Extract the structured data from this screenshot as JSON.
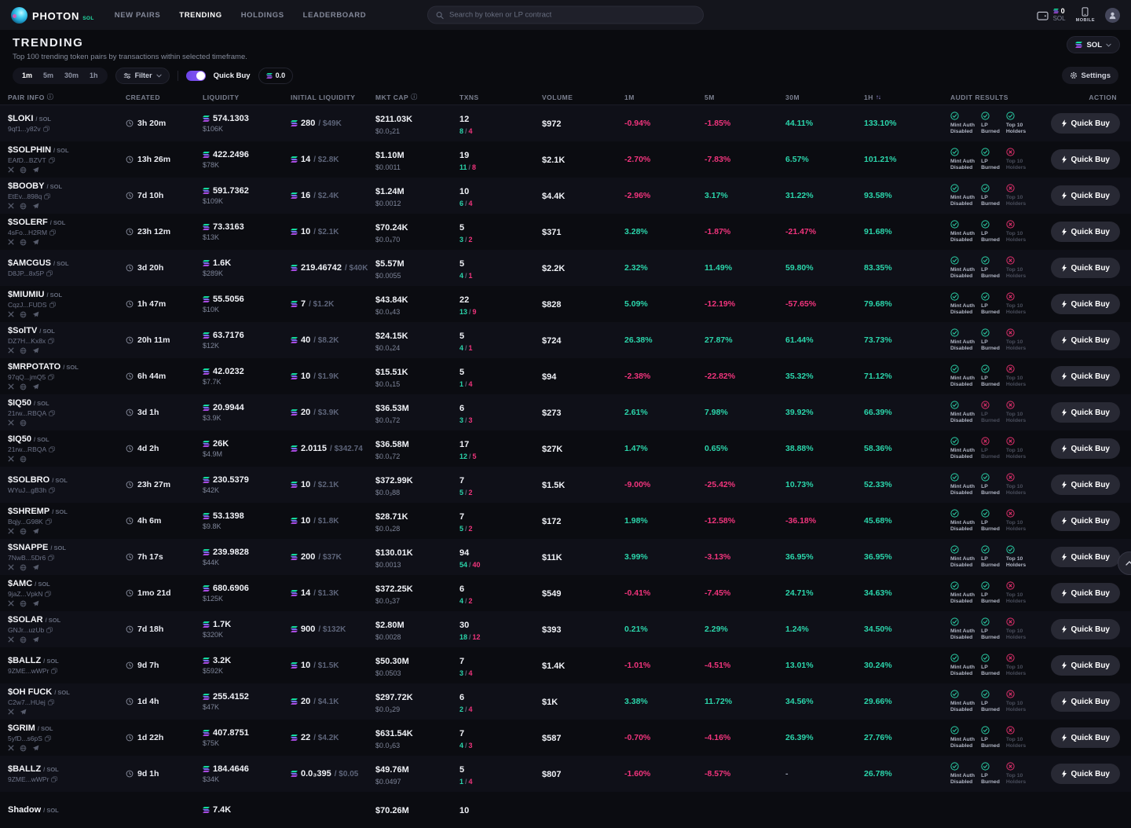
{
  "nav": {
    "brand": "PHOTON",
    "brand_sub": "SOL",
    "links": [
      {
        "label": "NEW PAIRS",
        "active": false
      },
      {
        "label": "TRENDING",
        "active": true
      },
      {
        "label": "HOLDINGS",
        "active": false
      },
      {
        "label": "LEADERBOARD",
        "active": false
      }
    ],
    "search_placeholder": "Search by token or LP contract",
    "wallet_balance": "0",
    "wallet_unit": "SOL",
    "mobile_label": "MOBILE"
  },
  "header": {
    "title": "TRENDING",
    "subtitle": "Top 100 trending token pairs by transactions within selected timeframe.",
    "chain_selector": "SOL"
  },
  "controls": {
    "timeframes": [
      "1m",
      "5m",
      "30m",
      "1h"
    ],
    "active_timeframe": "1m",
    "filter_label": "Filter",
    "quick_buy_label": "Quick Buy",
    "quick_buy_amount": "0.0",
    "settings_label": "Settings"
  },
  "table": {
    "columns": [
      "PAIR INFO",
      "CREATED",
      "LIQUIDITY",
      "INITIAL LIQUIDITY",
      "MKT CAP",
      "TXNS",
      "VOLUME",
      "1M",
      "5M",
      "30M",
      "1H",
      "AUDIT RESULTS",
      "ACTION"
    ],
    "audit_labels": {
      "mint": [
        "Mint Auth",
        "Disabled"
      ],
      "lp": [
        "LP",
        "Burned"
      ],
      "top10": [
        "Top 10",
        "Holders"
      ]
    },
    "action_label": "Quick Buy",
    "rows": [
      {
        "ticker": "$LOKI",
        "quote": "SOL",
        "address": "9qf1...y82v",
        "socials": [],
        "created": "3h 20m",
        "liq_sol": "574.1303",
        "liq_usd": "$106K",
        "init_sol": "280",
        "init_usd": "$49K",
        "mcap": "$211.03K",
        "price": "$0.0₃21",
        "txns": "12",
        "buys": "8",
        "sells": "4",
        "volume": "$972",
        "m1": "-0.94%",
        "m5": "-1.85%",
        "m30": "44.11%",
        "h1": "133.10%",
        "audit": {
          "mint": true,
          "lp": true,
          "top10": true
        }
      },
      {
        "ticker": "$SOLPHIN",
        "quote": "SOL",
        "address": "EAfD...BZVT",
        "socials": [
          "x",
          "globe",
          "telegram"
        ],
        "created": "13h 26m",
        "liq_sol": "422.2496",
        "liq_usd": "$78K",
        "init_sol": "14",
        "init_usd": "$2.8K",
        "mcap": "$1.10M",
        "price": "$0.0011",
        "txns": "19",
        "buys": "11",
        "sells": "8",
        "volume": "$2.1K",
        "m1": "-2.70%",
        "m5": "-7.83%",
        "m30": "6.57%",
        "h1": "101.21%",
        "audit": {
          "mint": true,
          "lp": true,
          "top10": false
        }
      },
      {
        "ticker": "$BOOBY",
        "quote": "SOL",
        "address": "EtEv...898q",
        "socials": [
          "x",
          "globe",
          "telegram"
        ],
        "created": "7d 10h",
        "liq_sol": "591.7362",
        "liq_usd": "$109K",
        "init_sol": "16",
        "init_usd": "$2.4K",
        "mcap": "$1.24M",
        "price": "$0.0012",
        "txns": "10",
        "buys": "6",
        "sells": "4",
        "volume": "$4.4K",
        "m1": "-2.96%",
        "m5": "3.17%",
        "m30": "31.22%",
        "h1": "93.58%",
        "audit": {
          "mint": true,
          "lp": true,
          "top10": false
        }
      },
      {
        "ticker": "$SOLERF",
        "quote": "SOL",
        "address": "4sFo...H2RM",
        "socials": [
          "x",
          "globe",
          "telegram"
        ],
        "created": "23h 12m",
        "liq_sol": "73.3163",
        "liq_usd": "$13K",
        "init_sol": "10",
        "init_usd": "$2.1K",
        "mcap": "$70.24K",
        "price": "$0.0₄70",
        "txns": "5",
        "buys": "3",
        "sells": "2",
        "volume": "$371",
        "m1": "3.28%",
        "m5": "-1.87%",
        "m30": "-21.47%",
        "h1": "91.68%",
        "audit": {
          "mint": true,
          "lp": true,
          "top10": false
        }
      },
      {
        "ticker": "$AMCGUS",
        "quote": "SOL",
        "address": "D8JP...8x5P",
        "socials": [],
        "created": "3d 20h",
        "liq_sol": "1.6K",
        "liq_usd": "$289K",
        "init_sol": "219.46742",
        "init_usd": "$40K",
        "mcap": "$5.57M",
        "price": "$0.0055",
        "txns": "5",
        "buys": "4",
        "sells": "1",
        "volume": "$2.2K",
        "m1": "2.32%",
        "m5": "11.49%",
        "m30": "59.80%",
        "h1": "83.35%",
        "audit": {
          "mint": true,
          "lp": true,
          "top10": false
        }
      },
      {
        "ticker": "$MIUMIU",
        "quote": "SOL",
        "address": "CqzJ...FUDS",
        "socials": [
          "x",
          "globe",
          "telegram"
        ],
        "created": "1h 47m",
        "liq_sol": "55.5056",
        "liq_usd": "$10K",
        "init_sol": "7",
        "init_usd": "$1.2K",
        "mcap": "$43.84K",
        "price": "$0.0₄43",
        "txns": "22",
        "buys": "13",
        "sells": "9",
        "volume": "$828",
        "m1": "5.09%",
        "m5": "-12.19%",
        "m30": "-57.65%",
        "h1": "79.68%",
        "audit": {
          "mint": true,
          "lp": true,
          "top10": false
        }
      },
      {
        "ticker": "$SolTV",
        "quote": "SOL",
        "address": "DZ7H...Kx8x",
        "socials": [
          "x",
          "globe",
          "telegram"
        ],
        "created": "20h 11m",
        "liq_sol": "63.7176",
        "liq_usd": "$12K",
        "init_sol": "40",
        "init_usd": "$8.2K",
        "mcap": "$24.15K",
        "price": "$0.0₄24",
        "txns": "5",
        "buys": "4",
        "sells": "1",
        "volume": "$724",
        "m1": "26.38%",
        "m5": "27.87%",
        "m30": "61.44%",
        "h1": "73.73%",
        "audit": {
          "mint": true,
          "lp": true,
          "top10": false
        }
      },
      {
        "ticker": "$MRPOTATO",
        "quote": "SOL",
        "address": "97qQ...jmQ5",
        "socials": [
          "x",
          "globe",
          "telegram"
        ],
        "created": "6h 44m",
        "liq_sol": "42.0232",
        "liq_usd": "$7.7K",
        "init_sol": "10",
        "init_usd": "$1.9K",
        "mcap": "$15.51K",
        "price": "$0.0₄15",
        "txns": "5",
        "buys": "1",
        "sells": "4",
        "volume": "$94",
        "m1": "-2.38%",
        "m5": "-22.82%",
        "m30": "35.32%",
        "h1": "71.12%",
        "audit": {
          "mint": true,
          "lp": true,
          "top10": false
        }
      },
      {
        "ticker": "$IQ50",
        "quote": "SOL",
        "address": "21rw...RBQA",
        "socials": [
          "x",
          "globe"
        ],
        "created": "3d 1h",
        "liq_sol": "20.9944",
        "liq_usd": "$3.9K",
        "init_sol": "20",
        "init_usd": "$3.9K",
        "mcap": "$36.53M",
        "price": "$0.0₄72",
        "txns": "6",
        "buys": "3",
        "sells": "3",
        "volume": "$273",
        "m1": "2.61%",
        "m5": "7.98%",
        "m30": "39.92%",
        "h1": "66.39%",
        "audit": {
          "mint": true,
          "lp": false,
          "top10": false
        }
      },
      {
        "ticker": "$IQ50",
        "quote": "SOL",
        "address": "21rw...RBQA",
        "socials": [
          "x",
          "globe"
        ],
        "created": "4d 2h",
        "liq_sol": "26K",
        "liq_usd": "$4.9M",
        "init_sol": "2.0115",
        "init_usd": "$342.74",
        "mcap": "$36.58M",
        "price": "$0.0₄72",
        "txns": "17",
        "buys": "12",
        "sells": "5",
        "volume": "$27K",
        "m1": "1.47%",
        "m5": "0.65%",
        "m30": "38.88%",
        "h1": "58.36%",
        "audit": {
          "mint": true,
          "lp": false,
          "top10": false
        }
      },
      {
        "ticker": "$SOLBRO",
        "quote": "SOL",
        "address": "WYuJ...gB3h",
        "socials": [],
        "created": "23h 27m",
        "liq_sol": "230.5379",
        "liq_usd": "$42K",
        "init_sol": "10",
        "init_usd": "$2.1K",
        "mcap": "$372.99K",
        "price": "$0.0₃88",
        "txns": "7",
        "buys": "5",
        "sells": "2",
        "volume": "$1.5K",
        "m1": "-9.00%",
        "m5": "-25.42%",
        "m30": "10.73%",
        "h1": "52.33%",
        "audit": {
          "mint": true,
          "lp": true,
          "top10": false
        }
      },
      {
        "ticker": "$SHREMP",
        "quote": "SOL",
        "address": "Bqjy...G98K",
        "socials": [
          "x",
          "globe",
          "telegram"
        ],
        "created": "4h 6m",
        "liq_sol": "53.1398",
        "liq_usd": "$9.8K",
        "init_sol": "10",
        "init_usd": "$1.8K",
        "mcap": "$28.71K",
        "price": "$0.0₄28",
        "txns": "7",
        "buys": "5",
        "sells": "2",
        "volume": "$172",
        "m1": "1.98%",
        "m5": "-12.58%",
        "m30": "-36.18%",
        "h1": "45.68%",
        "audit": {
          "mint": true,
          "lp": true,
          "top10": false
        }
      },
      {
        "ticker": "$SNAPPE",
        "quote": "SOL",
        "address": "7NwB...5Dr6",
        "socials": [
          "x",
          "globe",
          "telegram"
        ],
        "created": "7h 17s",
        "liq_sol": "239.9828",
        "liq_usd": "$44K",
        "init_sol": "200",
        "init_usd": "$37K",
        "mcap": "$130.01K",
        "price": "$0.0013",
        "txns": "94",
        "buys": "54",
        "sells": "40",
        "volume": "$11K",
        "m1": "3.99%",
        "m5": "-3.13%",
        "m30": "36.95%",
        "h1": "36.95%",
        "audit": {
          "mint": true,
          "lp": true,
          "top10": true
        }
      },
      {
        "ticker": "$AMC",
        "quote": "SOL",
        "address": "9jaZ...VpkN",
        "socials": [
          "x",
          "globe",
          "telegram"
        ],
        "created": "1mo 21d",
        "liq_sol": "680.6906",
        "liq_usd": "$125K",
        "init_sol": "14",
        "init_usd": "$1.3K",
        "mcap": "$372.25K",
        "price": "$0.0₃37",
        "txns": "6",
        "buys": "4",
        "sells": "2",
        "volume": "$549",
        "m1": "-0.41%",
        "m5": "-7.45%",
        "m30": "24.71%",
        "h1": "34.63%",
        "audit": {
          "mint": true,
          "lp": true,
          "top10": false
        }
      },
      {
        "ticker": "$SOLAR",
        "quote": "SOL",
        "address": "GNJr...uzUb",
        "socials": [
          "x",
          "globe",
          "telegram"
        ],
        "created": "7d 18h",
        "liq_sol": "1.7K",
        "liq_usd": "$320K",
        "init_sol": "900",
        "init_usd": "$132K",
        "mcap": "$2.80M",
        "price": "$0.0028",
        "txns": "30",
        "buys": "18",
        "sells": "12",
        "volume": "$393",
        "m1": "0.21%",
        "m5": "2.29%",
        "m30": "1.24%",
        "h1": "34.50%",
        "audit": {
          "mint": true,
          "lp": true,
          "top10": false
        }
      },
      {
        "ticker": "$BALLZ",
        "quote": "SOL",
        "address": "9ZME...wWPr",
        "socials": [],
        "created": "9d 7h",
        "liq_sol": "3.2K",
        "liq_usd": "$592K",
        "init_sol": "10",
        "init_usd": "$1.5K",
        "mcap": "$50.30M",
        "price": "$0.0503",
        "txns": "7",
        "buys": "3",
        "sells": "4",
        "volume": "$1.4K",
        "m1": "-1.01%",
        "m5": "-4.51%",
        "m30": "13.01%",
        "h1": "30.24%",
        "audit": {
          "mint": true,
          "lp": true,
          "top10": false
        }
      },
      {
        "ticker": "$OH FUCK",
        "quote": "SOL",
        "address": "C2w7...HUej",
        "socials": [
          "x",
          "telegram"
        ],
        "created": "1d 4h",
        "liq_sol": "255.4152",
        "liq_usd": "$47K",
        "init_sol": "20",
        "init_usd": "$4.1K",
        "mcap": "$297.72K",
        "price": "$0.0₃29",
        "txns": "6",
        "buys": "2",
        "sells": "4",
        "volume": "$1K",
        "m1": "3.38%",
        "m5": "11.72%",
        "m30": "34.56%",
        "h1": "29.66%",
        "audit": {
          "mint": true,
          "lp": true,
          "top10": false
        }
      },
      {
        "ticker": "$GRIM",
        "quote": "SOL",
        "address": "5yfD...s6pS",
        "socials": [
          "x",
          "globe",
          "telegram"
        ],
        "created": "1d 22h",
        "liq_sol": "407.8751",
        "liq_usd": "$75K",
        "init_sol": "22",
        "init_usd": "$4.2K",
        "mcap": "$631.54K",
        "price": "$0.0₃63",
        "txns": "7",
        "buys": "4",
        "sells": "3",
        "volume": "$587",
        "m1": "-0.70%",
        "m5": "-4.16%",
        "m30": "26.39%",
        "h1": "27.76%",
        "audit": {
          "mint": true,
          "lp": true,
          "top10": false
        }
      },
      {
        "ticker": "$BALLZ",
        "quote": "SOL",
        "address": "9ZME...wWPr",
        "socials": [],
        "created": "9d 1h",
        "liq_sol": "184.4646",
        "liq_usd": "$34K",
        "init_sol": "0.0₃395",
        "init_usd": "$0.05",
        "mcap": "$49.76M",
        "price": "$0.0497",
        "txns": "5",
        "buys": "1",
        "sells": "4",
        "volume": "$807",
        "m1": "-1.60%",
        "m5": "-8.57%",
        "m30": "-",
        "h1": "26.78%",
        "audit": {
          "mint": true,
          "lp": true,
          "top10": false
        }
      }
    ],
    "partial_row": {
      "ticker": "Shadow",
      "quote": "SOL",
      "liq_sol": "7.4K",
      "mcap": "$70.26M",
      "txns": "10"
    }
  }
}
